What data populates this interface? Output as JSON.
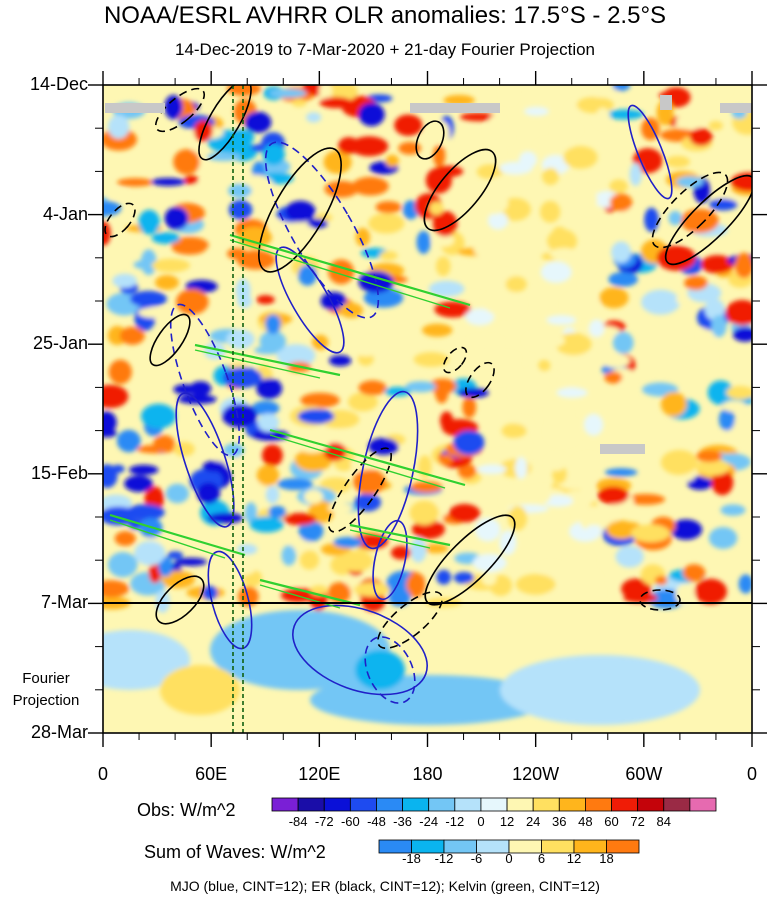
{
  "chart_data": {
    "type": "heatmap",
    "title": "NOAA/ESRL AVHRR OLR anomalies: 17.5°S - 2.5°S",
    "subtitle": "14-Dec-2019 to 7-Mar-2020 + 21-day Fourier Projection",
    "y_ticks": [
      "14-Dec",
      "4-Jan",
      "25-Jan",
      "15-Feb",
      "7-Mar",
      "28-Mar"
    ],
    "x_ticks": [
      "0",
      "60E",
      "120E",
      "180",
      "120W",
      "60W",
      "0"
    ],
    "x_range_deg": [
      0,
      360
    ],
    "projection_label": "Fourier\nProjection",
    "obs_colorbar": {
      "label": "Obs: W/m^2",
      "ticks": [
        "-84",
        "-72",
        "-60",
        "-48",
        "-36",
        "-24",
        "-12",
        "0",
        "12",
        "24",
        "36",
        "48",
        "60",
        "72",
        "84"
      ],
      "colors": [
        "#7a1fd6",
        "#1a0da8",
        "#0a10d8",
        "#1e4bf0",
        "#2a8af5",
        "#0ab4ef",
        "#73c6f5",
        "#b5e2fa",
        "#e6f7fc",
        "#fef7b3",
        "#ffe060",
        "#ffb51c",
        "#ff7a10",
        "#f01c06",
        "#c4030a",
        "#9a2a45",
        "#e66ab0"
      ]
    },
    "waves_colorbar": {
      "label": "Sum of Waves: W/m^2",
      "ticks": [
        "-18",
        "-12",
        "-6",
        "0",
        "6",
        "12",
        "18"
      ],
      "colors": [
        "#2a8af5",
        "#0ab4ef",
        "#73c6f5",
        "#b5e2fa",
        "#fef7b3",
        "#ffe060",
        "#ffb51c",
        "#ff7a10"
      ]
    },
    "footer": "MJO (blue, CINT=12); ER (black, CINT=12); Kelvin (green, CINT=12)"
  }
}
